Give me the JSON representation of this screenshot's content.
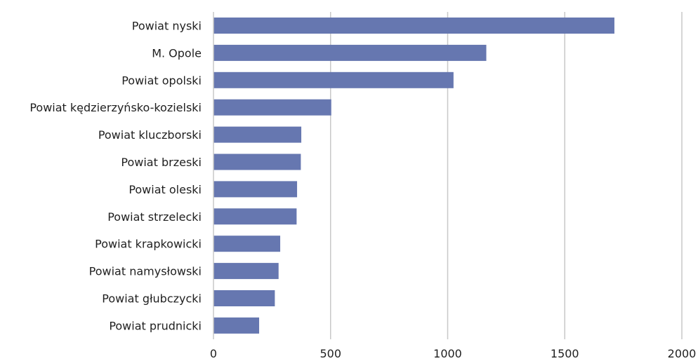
{
  "chart_data": {
    "type": "bar",
    "orientation": "horizontal",
    "categories": [
      "Powiat nyski",
      "M. Opole",
      "Powiat opolski",
      "Powiat kędzierzyńsko-kozielski",
      "Powiat kluczborski",
      "Powiat brzeski",
      "Powiat oleski",
      "Powiat strzelecki",
      "Powiat krapkowicki",
      "Powiat namysłowski",
      "Powiat głubczycki",
      "Powiat prudnicki"
    ],
    "values": [
      1712,
      1165,
      1025,
      503,
      375,
      373,
      357,
      355,
      285,
      278,
      262,
      195
    ],
    "xlim": [
      0,
      2000
    ],
    "xticks": [
      "0",
      "500",
      "1000",
      "1500",
      "2000"
    ],
    "grid": "vertical",
    "legend": "none",
    "bar_color": "#6677b0",
    "title": "",
    "xlabel": "",
    "ylabel": ""
  }
}
